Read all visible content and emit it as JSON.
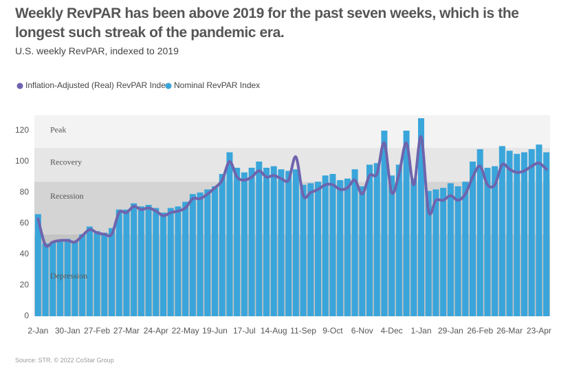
{
  "chart_data": {
    "type": "bar-line",
    "title": "Weekly RevPAR has been above 2019 for the past seven weeks, which is the longest such streak of the pandemic era.",
    "subtitle": "U.S. weekly RevPAR, indexed to 2019",
    "source": "Source: STR. © 2022 CoStar Group",
    "categories": [
      "2-Jan",
      null,
      null,
      null,
      "30-Jan",
      null,
      null,
      null,
      "27-Feb",
      null,
      null,
      null,
      "27-Mar",
      null,
      null,
      null,
      "24-Apr",
      null,
      null,
      null,
      "22-May",
      null,
      null,
      null,
      "19-Jun",
      null,
      null,
      null,
      "17-Jul",
      null,
      null,
      null,
      "14-Aug",
      null,
      null,
      null,
      "11-Sep",
      null,
      null,
      null,
      "9-Oct",
      null,
      null,
      null,
      "6-Nov",
      null,
      null,
      null,
      "4-Dec",
      null,
      null,
      null,
      "1-Jan",
      null,
      null,
      null,
      "29-Jan",
      null,
      null,
      null,
      "26-Feb",
      null,
      null,
      null,
      "26-Mar",
      null,
      null,
      null,
      "23-Apr",
      null
    ],
    "series": [
      {
        "name": "Nominal RevPAR Index",
        "type": "bar",
        "color": "#3aa5da",
        "values": [
          66,
          47,
          48,
          49,
          50,
          48,
          53,
          58,
          55,
          54,
          57,
          69,
          69,
          73,
          71,
          72,
          70,
          67,
          70,
          71,
          74,
          79,
          80,
          82,
          84,
          92,
          106,
          96,
          93,
          96,
          100,
          96,
          97,
          95,
          94,
          95,
          85,
          86,
          87,
          91,
          92,
          88,
          89,
          95,
          84,
          98,
          99,
          120,
          91,
          98,
          120,
          89,
          128,
          81,
          82,
          83,
          86,
          84,
          87,
          100,
          108,
          96,
          97,
          110,
          107,
          105,
          106,
          108,
          111,
          106
        ]
      },
      {
        "name": "Inflation-Adjusted (Real) RevPAR Index",
        "type": "line",
        "color": "#6e64ad",
        "values": [
          63,
          46,
          48,
          49,
          49,
          48,
          52,
          56,
          54,
          53,
          53,
          67,
          67,
          71,
          69,
          70,
          68,
          65,
          67,
          68,
          70,
          76,
          76,
          79,
          83,
          88,
          100,
          90,
          88,
          90,
          94,
          90,
          91,
          89,
          88,
          103,
          78,
          80,
          82,
          85,
          85,
          82,
          83,
          88,
          79,
          91,
          92,
          112,
          80,
          92,
          112,
          85,
          116,
          68,
          75,
          75,
          78,
          75,
          79,
          90,
          97,
          85,
          85,
          98,
          95,
          93,
          94,
          97,
          99,
          95
        ]
      }
    ],
    "ylim": [
      0,
      130
    ],
    "yticks": [
      0,
      20,
      40,
      60,
      80,
      100,
      120
    ],
    "zones": [
      {
        "label": "Depression",
        "from": 0,
        "to": 53,
        "color": "#c4c4c4"
      },
      {
        "label": "Recession",
        "from": 53,
        "to": 87,
        "color": "#d4d4d4"
      },
      {
        "label": "Recovery",
        "from": 87,
        "to": 109,
        "color": "#e6e6e6"
      },
      {
        "label": "Peak",
        "from": 109,
        "to": 130,
        "color": "#f3f3f3"
      }
    ]
  }
}
